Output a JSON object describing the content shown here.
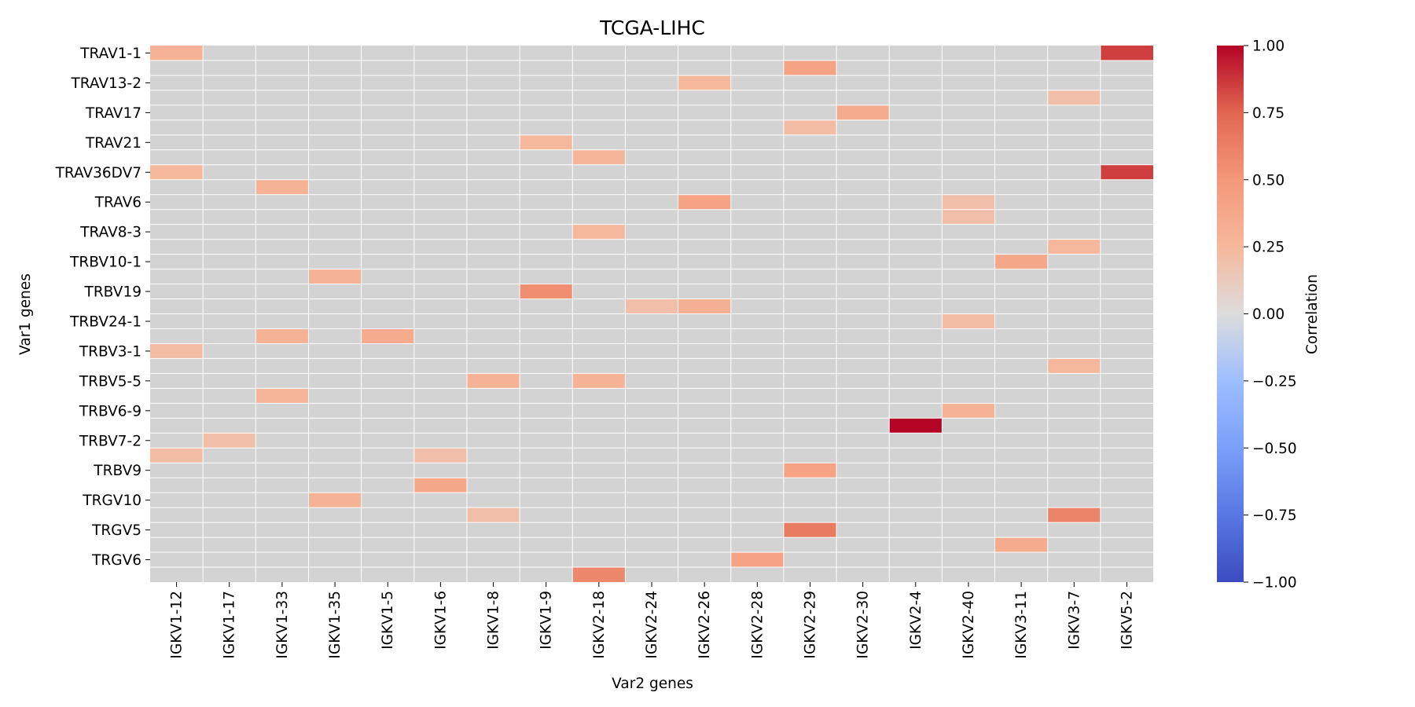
{
  "chart_data": {
    "type": "heatmap",
    "title": "TCGA-LIHC",
    "xlabel": "Var2 genes",
    "ylabel": "Var1 genes",
    "colorbar_label": "Correlation",
    "colormap": "coolwarm",
    "vmin": -1.0,
    "vmax": 1.0,
    "missing_color": "#d3d3d3",
    "colorbar_ticks": [
      "1.00",
      "0.75",
      "0.50",
      "0.25",
      "0.00",
      "−0.25",
      "−0.50",
      "−0.75",
      "−1.00"
    ],
    "colorbar_tick_values": [
      1.0,
      0.75,
      0.5,
      0.25,
      0.0,
      -0.25,
      -0.5,
      -0.75,
      -1.0
    ],
    "x_categories": [
      "IGKV1-12",
      "IGKV1-17",
      "IGKV1-33",
      "IGKV1-35",
      "IGKV1-5",
      "IGKV1-6",
      "IGKV1-8",
      "IGKV1-9",
      "IGKV2-18",
      "IGKV2-24",
      "IGKV2-26",
      "IGKV2-28",
      "IGKV2-29",
      "IGKV2-30",
      "IGKV2-4",
      "IGKV2-40",
      "IGKV3-11",
      "IGKV3-7",
      "IGKV5-2"
    ],
    "y_tick_labels": [
      "TRAV1-1",
      "TRAV13-2",
      "TRAV17",
      "TRAV21",
      "TRAV36DV7",
      "TRAV6",
      "TRAV8-3",
      "TRBV10-1",
      "TRBV19",
      "TRBV24-1",
      "TRBV3-1",
      "TRBV5-5",
      "TRBV6-9",
      "TRBV7-2",
      "TRBV9",
      "TRGV10",
      "TRGV5",
      "TRGV6"
    ],
    "n_rows": 36,
    "cells": [
      {
        "row": 0,
        "col": 0,
        "value": 0.3
      },
      {
        "row": 0,
        "col": 18,
        "value": 0.85
      },
      {
        "row": 1,
        "col": 12,
        "value": 0.42
      },
      {
        "row": 2,
        "col": 10,
        "value": 0.25
      },
      {
        "row": 3,
        "col": 17,
        "value": 0.2
      },
      {
        "row": 4,
        "col": 13,
        "value": 0.35
      },
      {
        "row": 5,
        "col": 12,
        "value": 0.22
      },
      {
        "row": 6,
        "col": 7,
        "value": 0.25
      },
      {
        "row": 7,
        "col": 8,
        "value": 0.28
      },
      {
        "row": 8,
        "col": 0,
        "value": 0.25
      },
      {
        "row": 8,
        "col": 18,
        "value": 0.85
      },
      {
        "row": 9,
        "col": 2,
        "value": 0.3
      },
      {
        "row": 10,
        "col": 10,
        "value": 0.42
      },
      {
        "row": 10,
        "col": 15,
        "value": 0.2
      },
      {
        "row": 11,
        "col": 15,
        "value": 0.2
      },
      {
        "row": 12,
        "col": 8,
        "value": 0.25
      },
      {
        "row": 13,
        "col": 17,
        "value": 0.25
      },
      {
        "row": 14,
        "col": 16,
        "value": 0.38
      },
      {
        "row": 15,
        "col": 3,
        "value": 0.3
      },
      {
        "row": 16,
        "col": 7,
        "value": 0.55
      },
      {
        "row": 17,
        "col": 9,
        "value": 0.2
      },
      {
        "row": 17,
        "col": 10,
        "value": 0.32
      },
      {
        "row": 18,
        "col": 15,
        "value": 0.22
      },
      {
        "row": 19,
        "col": 2,
        "value": 0.3
      },
      {
        "row": 19,
        "col": 4,
        "value": 0.35
      },
      {
        "row": 20,
        "col": 0,
        "value": 0.22
      },
      {
        "row": 21,
        "col": 17,
        "value": 0.25
      },
      {
        "row": 22,
        "col": 6,
        "value": 0.3
      },
      {
        "row": 22,
        "col": 8,
        "value": 0.3
      },
      {
        "row": 23,
        "col": 2,
        "value": 0.28
      },
      {
        "row": 24,
        "col": 15,
        "value": 0.3
      },
      {
        "row": 25,
        "col": 14,
        "value": 1.0
      },
      {
        "row": 26,
        "col": 1,
        "value": 0.2
      },
      {
        "row": 27,
        "col": 0,
        "value": 0.22
      },
      {
        "row": 27,
        "col": 5,
        "value": 0.2
      },
      {
        "row": 28,
        "col": 12,
        "value": 0.42
      },
      {
        "row": 29,
        "col": 5,
        "value": 0.38
      },
      {
        "row": 30,
        "col": 3,
        "value": 0.3
      },
      {
        "row": 31,
        "col": 6,
        "value": 0.2
      },
      {
        "row": 31,
        "col": 17,
        "value": 0.6
      },
      {
        "row": 32,
        "col": 12,
        "value": 0.65
      },
      {
        "row": 33,
        "col": 16,
        "value": 0.35
      },
      {
        "row": 34,
        "col": 11,
        "value": 0.42
      },
      {
        "row": 35,
        "col": 8,
        "value": 0.58
      }
    ]
  }
}
